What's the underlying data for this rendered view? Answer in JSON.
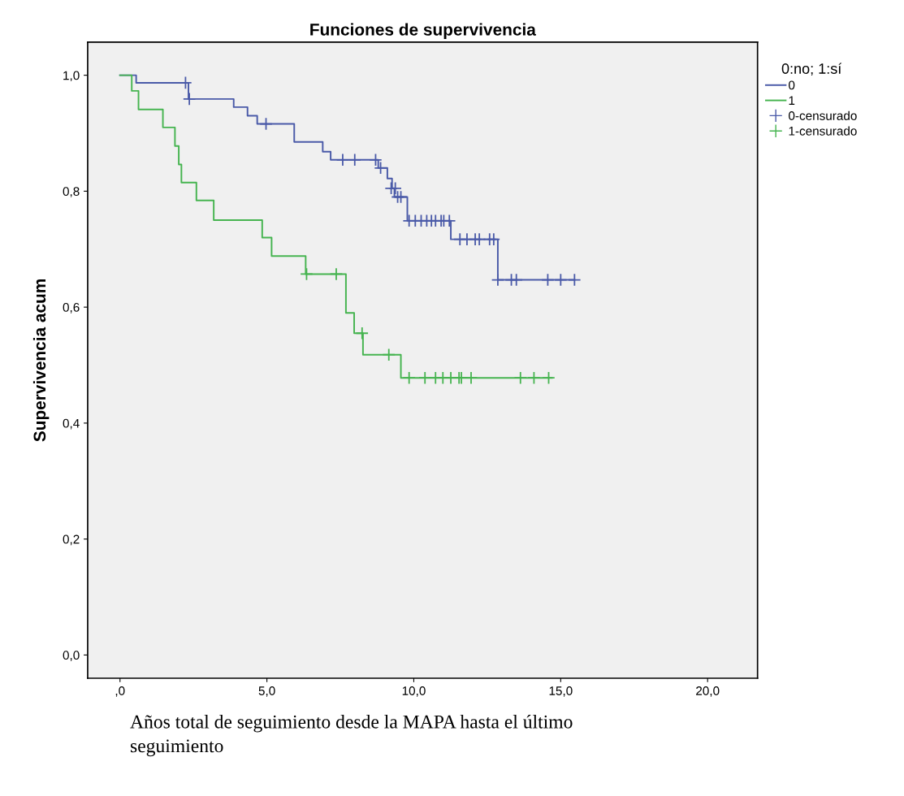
{
  "chart_data": {
    "type": "step",
    "title": "Funciones de supervivencia",
    "ylabel": "Supervivencia acum",
    "xlabel": "Años total de seguimiento desde la MAPA hasta el último seguimiento",
    "legend_title": "0:no; 1:sí",
    "legend": "right",
    "grid": false,
    "xlim": [
      -1.1,
      21.7
    ],
    "ylim": [
      -0.04,
      1.057
    ],
    "xticks": [
      {
        "value": 0,
        "label": ",0"
      },
      {
        "value": 5,
        "label": "5,0"
      },
      {
        "value": 10,
        "label": "10,0"
      },
      {
        "value": 15,
        "label": "15,0"
      },
      {
        "value": 20,
        "label": "20,0"
      }
    ],
    "yticks": [
      {
        "value": 0,
        "label": "0,0"
      },
      {
        "value": 0.2,
        "label": "0,2"
      },
      {
        "value": 0.4,
        "label": "0,4"
      },
      {
        "value": 0.6,
        "label": "0,6"
      },
      {
        "value": 0.8,
        "label": "0,8"
      },
      {
        "value": 1.0,
        "label": "1,0"
      }
    ],
    "series": [
      {
        "name": "0",
        "color": "#4a5aa8",
        "x": [
          0,
          0.55,
          2.33,
          3.87,
          4.34,
          4.67,
          5.93,
          6.9,
          7.17,
          8.79,
          9.1,
          9.26,
          9.34,
          9.78,
          11.26,
          12.86,
          15.47
        ],
        "values": [
          1.0,
          0.987,
          0.959,
          0.945,
          0.93,
          0.916,
          0.885,
          0.868,
          0.854,
          0.84,
          0.822,
          0.805,
          0.79,
          0.749,
          0.717,
          0.647,
          0.647
        ]
      },
      {
        "name": "1",
        "color": "#46b450",
        "x": [
          0,
          0.4,
          0.63,
          1.46,
          1.87,
          2.0,
          2.09,
          2.6,
          3.19,
          4.84,
          5.16,
          6.32,
          7.69,
          7.97,
          8.27,
          9.56,
          14.7
        ],
        "values": [
          1.0,
          0.973,
          0.941,
          0.91,
          0.878,
          0.846,
          0.815,
          0.784,
          0.75,
          0.72,
          0.688,
          0.657,
          0.59,
          0.555,
          0.518,
          0.478,
          0.478
        ]
      },
      {
        "name": "0-censurado",
        "type": "scatter",
        "marker": "cross",
        "color": "#4a5aa8",
        "x": [
          2.23,
          2.36,
          4.97,
          7.58,
          7.99,
          8.7,
          8.87,
          9.23,
          9.37,
          9.45,
          9.56,
          9.84,
          10.05,
          10.25,
          10.44,
          10.6,
          10.74,
          10.93,
          11.02,
          11.21,
          11.57,
          11.81,
          12.09,
          12.23,
          12.58,
          12.72,
          12.86,
          13.32,
          13.49,
          14.56,
          15.0,
          15.47
        ],
        "values": [
          0.987,
          0.959,
          0.916,
          0.854,
          0.854,
          0.854,
          0.84,
          0.805,
          0.805,
          0.79,
          0.79,
          0.749,
          0.749,
          0.749,
          0.749,
          0.749,
          0.749,
          0.749,
          0.749,
          0.749,
          0.717,
          0.717,
          0.717,
          0.717,
          0.717,
          0.717,
          0.647,
          0.647,
          0.647,
          0.647,
          0.647,
          0.647
        ]
      },
      {
        "name": "1-censurado",
        "type": "scatter",
        "marker": "cross",
        "color": "#46b450",
        "x": [
          6.35,
          7.36,
          8.24,
          9.15,
          9.84,
          10.38,
          10.74,
          10.99,
          11.26,
          11.54,
          11.62,
          11.95,
          13.63,
          14.09,
          14.59
        ],
        "values": [
          0.657,
          0.657,
          0.555,
          0.518,
          0.478,
          0.478,
          0.478,
          0.478,
          0.478,
          0.478,
          0.478,
          0.478,
          0.478,
          0.478,
          0.478
        ]
      }
    ]
  }
}
